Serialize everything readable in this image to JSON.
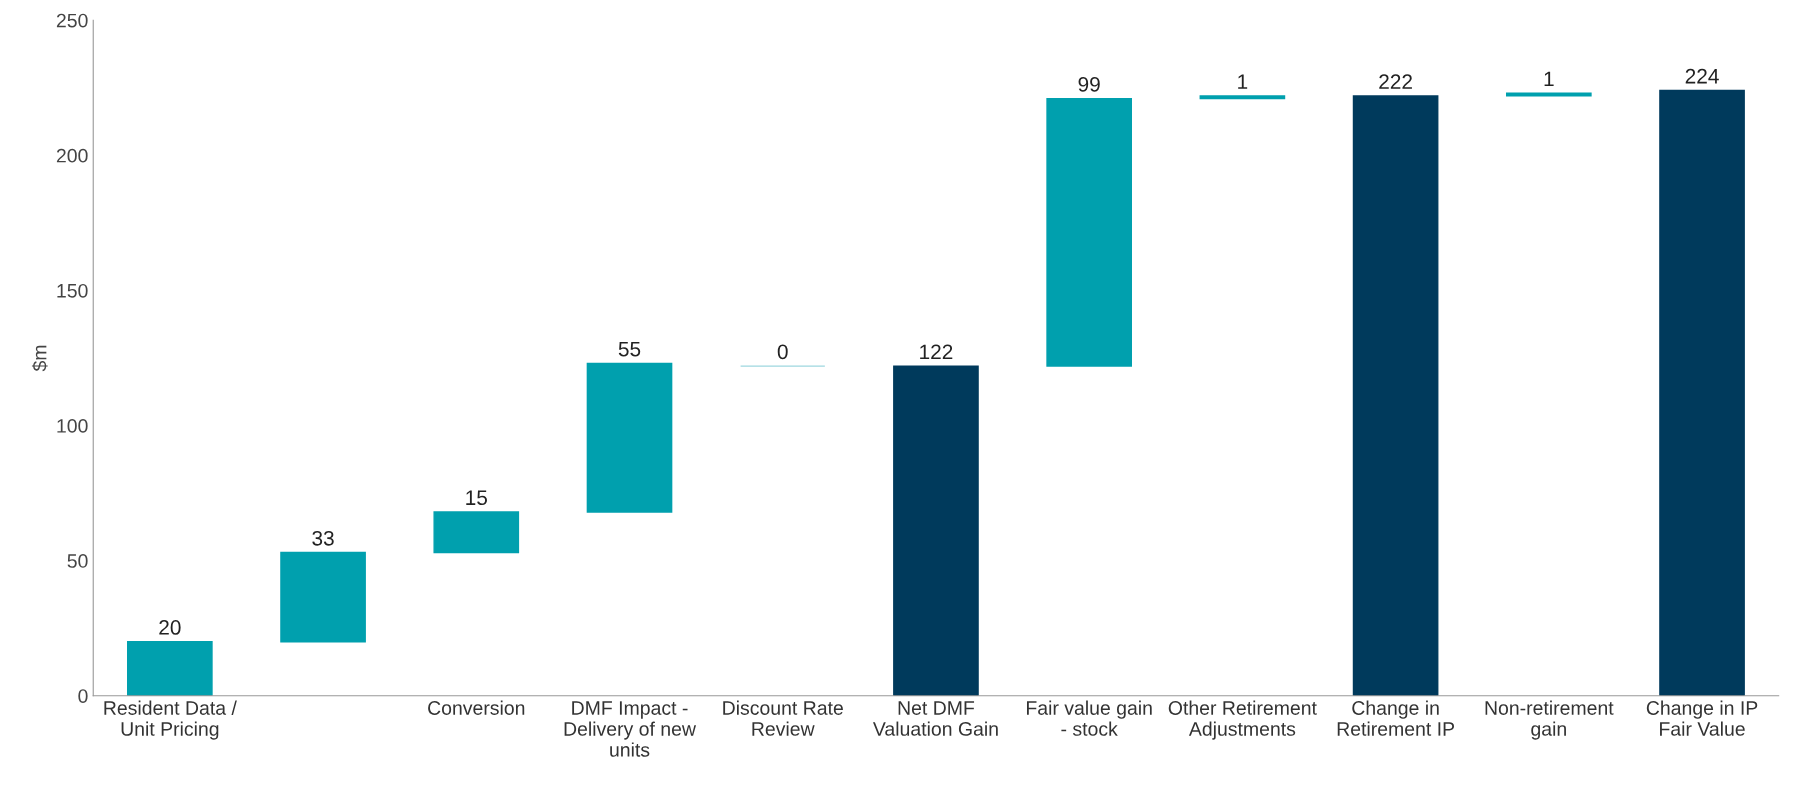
{
  "chart_data": {
    "type": "bar",
    "ylabel": "$m",
    "categories": [
      "Resident Data / Unit Pricing",
      null,
      "Conversion",
      "DMF Impact - Delivery of new units",
      "Discount Rate Review",
      "Net DMF Valuation Gain",
      "Fair value gain - stock",
      "Other Retirement Adjustments",
      "Change in Retirement IP",
      "Non-retirement gain",
      "Change in IP Fair Value"
    ],
    "values": [
      20,
      33,
      15,
      55,
      0,
      122,
      99,
      1,
      222,
      1,
      224
    ],
    "base": [
      0,
      20,
      53,
      68,
      122,
      0,
      122,
      221,
      0,
      222,
      0
    ],
    "colors": [
      "#00a0ae",
      "#00a0ae",
      "#00a0ae",
      "#00a0ae",
      "#9ed8e0",
      "#003a5c",
      "#00a0ae",
      "#00a0ae",
      "#003a5c",
      "#00a0ae",
      "#003a5c"
    ],
    "data_labels": true,
    "ylim": [
      0,
      250
    ],
    "yticks": [
      0,
      50,
      100,
      150,
      200,
      250
    ],
    "grid": false
  }
}
